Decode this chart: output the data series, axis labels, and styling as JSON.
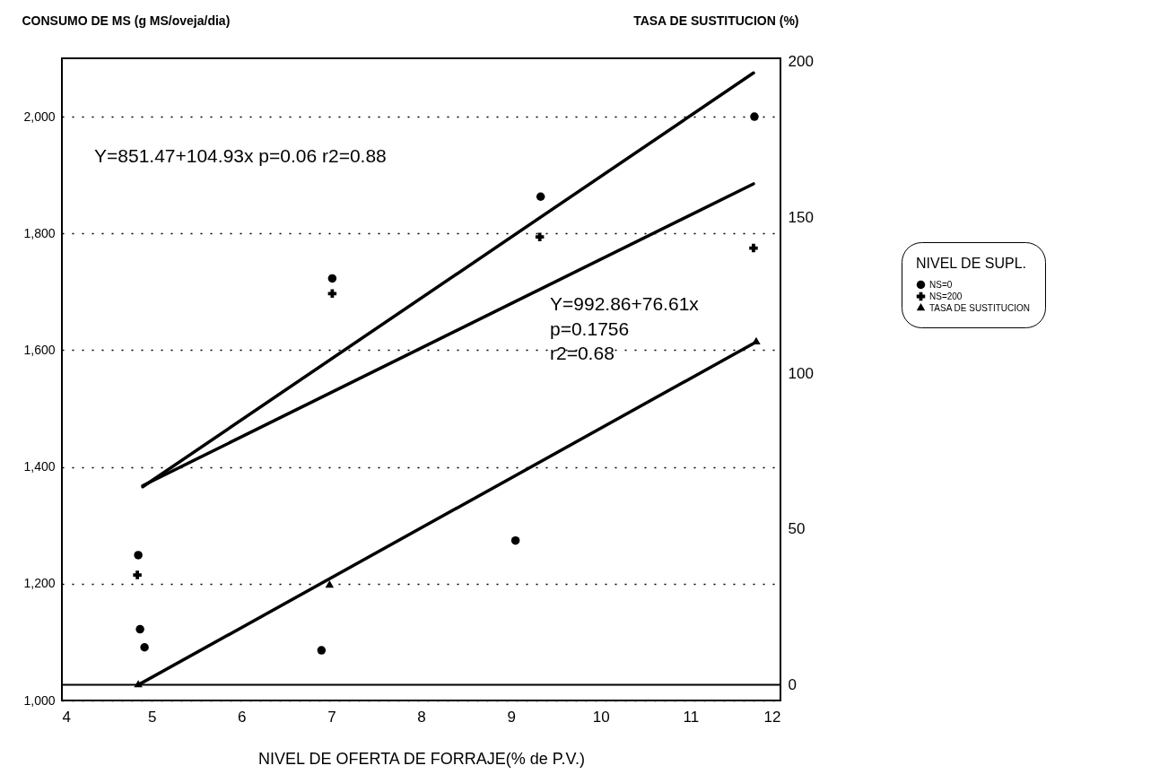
{
  "chart_data": {
    "type": "scatter",
    "xlabel": "NIVEL DE OFERTA DE FORRAJE(% de P.V.)",
    "ylabel": "CONSUMO DE MS (g MS/oveja/dia)",
    "y2label": "TASA DE SUSTITUCION (%)",
    "legend_title": "NIVEL DE SUPL.",
    "legend": "right",
    "grid": "y",
    "xlim": [
      4,
      12
    ],
    "xticks": [
      4,
      5,
      6,
      7,
      8,
      9,
      10,
      11,
      12
    ],
    "ylim": [
      1000,
      2100
    ],
    "yticks": [
      {
        "value": 1000,
        "label": "1,000"
      },
      {
        "value": 1200,
        "label": "1,200"
      },
      {
        "value": 1400,
        "label": "1,400"
      },
      {
        "value": 1600,
        "label": "1,600"
      },
      {
        "value": 1800,
        "label": "1,800"
      },
      {
        "value": 2000,
        "label": "2,000"
      }
    ],
    "y2lim": [
      -5,
      201
    ],
    "y2ticks": [
      0,
      50,
      100,
      150,
      200
    ],
    "series": [
      {
        "name": "NS=0",
        "marker": "circle",
        "color": "#000000",
        "x": [
          4.85,
          4.87,
          4.92,
          6.89,
          7.01,
          9.05,
          9.33,
          11.71
        ],
        "values": [
          1249,
          1122,
          1091,
          1086,
          1723,
          1274,
          1863,
          2000
        ]
      },
      {
        "name": "NS=200",
        "marker": "cross",
        "color": "#000000",
        "x": [
          4.84,
          7.01,
          9.32,
          11.7
        ],
        "values": [
          1215,
          1697,
          1794,
          1775
        ]
      },
      {
        "name": "TASA DE SUSTITUCION",
        "marker": "triangle",
        "axis": "y2",
        "color": "#000000",
        "x": [
          4.85,
          6.98,
          11.73
        ],
        "values": [
          0,
          32,
          110
        ]
      },
      {
        "type": "line",
        "color": "#000000",
        "x": [
          4.9,
          11.7
        ],
        "values": [
          1366,
          2075
        ]
      },
      {
        "type": "line",
        "color": "#000000",
        "x": [
          4.9,
          11.7
        ],
        "values": [
          1368,
          1885
        ]
      },
      {
        "type": "line",
        "axis": "y2",
        "color": "#000000",
        "x": [
          4.85,
          11.73
        ],
        "values": [
          0,
          110
        ]
      }
    ],
    "ref_lines": [
      {
        "axis": "y2",
        "value": 0,
        "color": "#000000",
        "line_style": "solid"
      }
    ],
    "annotations": [
      "Y=851.47+104.93x  p=0.06  r2=0.88",
      "Y=992.86+76.61x",
      "p=0.1756",
      "r2=0.68"
    ]
  }
}
